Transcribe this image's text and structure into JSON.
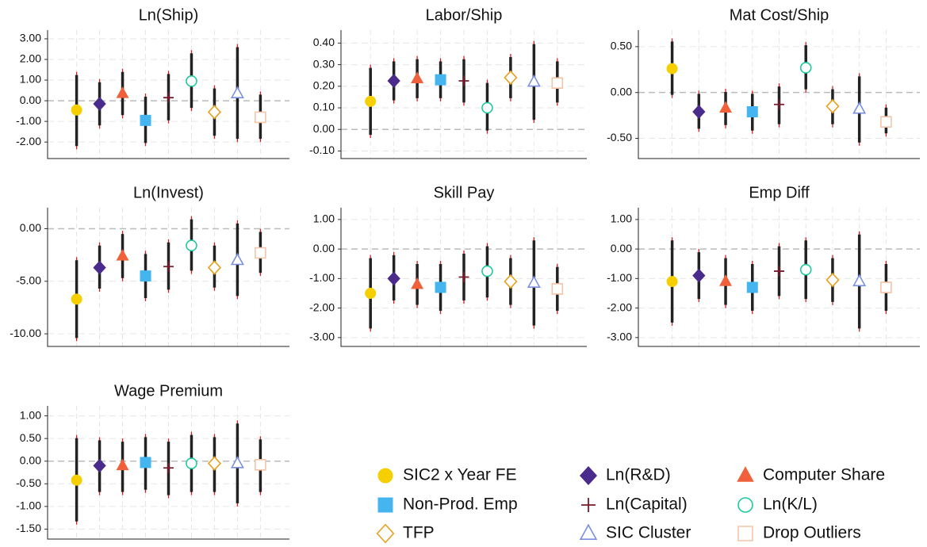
{
  "chart_data": [
    {
      "type": "coefplot",
      "title": "Ln(Ship)",
      "ylim": [
        -2.8,
        3.42
      ],
      "yticks": [
        {
          "value": -2,
          "label": "-2.00"
        },
        {
          "value": -1,
          "label": "-1.00"
        },
        {
          "value": 0,
          "label": "0.00"
        },
        {
          "value": 1,
          "label": "1.00"
        },
        {
          "value": 2,
          "label": "2.00"
        },
        {
          "value": 3,
          "label": "3.00"
        }
      ],
      "values": [
        -0.45,
        -0.15,
        0.35,
        -0.95,
        0.15,
        0.95,
        -0.55,
        0.35,
        -0.8
      ],
      "ci_low": [
        -2.35,
        -1.35,
        -0.85,
        -2.2,
        -1.1,
        -0.5,
        -1.85,
        -2.0,
        -2.0
      ],
      "ci_high": [
        1.4,
        1.05,
        1.55,
        0.35,
        1.45,
        2.45,
        0.75,
        2.75,
        0.45
      ]
    },
    {
      "type": "coefplot",
      "title": "Labor/Ship",
      "ylim": [
        -0.135,
        0.46
      ],
      "yticks": [
        {
          "value": -0.1,
          "label": "-0.10"
        },
        {
          "value": 0,
          "label": "0.00"
        },
        {
          "value": 0.1,
          "label": "0.10"
        },
        {
          "value": 0.2,
          "label": "0.20"
        },
        {
          "value": 0.3,
          "label": "0.30"
        },
        {
          "value": 0.4,
          "label": "0.40"
        }
      ],
      "values": [
        0.13,
        0.225,
        0.235,
        0.23,
        0.225,
        0.1,
        0.24,
        0.22,
        0.215
      ],
      "ci_low": [
        -0.04,
        0.12,
        0.13,
        0.13,
        0.11,
        -0.02,
        0.13,
        0.03,
        0.11
      ],
      "ci_high": [
        0.3,
        0.33,
        0.34,
        0.33,
        0.34,
        0.23,
        0.35,
        0.41,
        0.33
      ]
    },
    {
      "type": "coefplot",
      "title": "Mat Cost/Ship",
      "ylim": [
        -0.72,
        0.68
      ],
      "yticks": [
        {
          "value": -0.5,
          "label": "-0.50"
        },
        {
          "value": 0,
          "label": "0.00"
        },
        {
          "value": 0.5,
          "label": "0.50"
        }
      ],
      "values": [
        0.26,
        -0.21,
        -0.17,
        -0.21,
        -0.13,
        0.27,
        -0.15,
        -0.18,
        -0.32
      ],
      "ci_low": [
        -0.06,
        -0.43,
        -0.39,
        -0.45,
        -0.38,
        0.0,
        -0.38,
        -0.58,
        -0.48
      ],
      "ci_high": [
        0.59,
        0.02,
        0.04,
        0.02,
        0.1,
        0.55,
        0.07,
        0.21,
        -0.13
      ]
    },
    {
      "type": "coefplot",
      "title": "Ln(Invest)",
      "ylim": [
        -11.2,
        2.0
      ],
      "yticks": [
        {
          "value": -10,
          "label": "-10.00"
        },
        {
          "value": -5,
          "label": "-5.00"
        },
        {
          "value": 0,
          "label": "0.00"
        }
      ],
      "values": [
        -6.7,
        -3.7,
        -2.6,
        -4.5,
        -3.6,
        -1.6,
        -3.7,
        -3.0,
        -2.3
      ],
      "ci_low": [
        -10.7,
        -6.0,
        -5.0,
        -6.9,
        -6.1,
        -4.3,
        -5.9,
        -6.7,
        -4.5
      ],
      "ci_high": [
        -2.7,
        -1.3,
        -0.2,
        -2.1,
        -1.0,
        1.2,
        -1.3,
        0.8,
        0.0
      ]
    },
    {
      "type": "coefplot",
      "title": "Skill Pay",
      "ylim": [
        -3.3,
        1.4
      ],
      "yticks": [
        {
          "value": -3,
          "label": "-3.00"
        },
        {
          "value": -2,
          "label": "-2.00"
        },
        {
          "value": -1,
          "label": "-1.00"
        },
        {
          "value": 0,
          "label": "0.00"
        },
        {
          "value": 1,
          "label": "1.00"
        }
      ],
      "values": [
        -1.5,
        -1.0,
        -1.2,
        -1.3,
        -0.95,
        -0.75,
        -1.1,
        -1.15,
        -1.35
      ],
      "ci_low": [
        -2.8,
        -1.85,
        -2.0,
        -2.2,
        -1.85,
        -1.75,
        -2.0,
        -2.7,
        -2.2
      ],
      "ci_high": [
        -0.2,
        -0.1,
        -0.4,
        -0.4,
        -0.05,
        0.2,
        -0.2,
        0.4,
        -0.5
      ]
    },
    {
      "type": "coefplot",
      "title": "Emp Diff",
      "ylim": [
        -3.3,
        1.4
      ],
      "yticks": [
        {
          "value": -3,
          "label": "-3.00"
        },
        {
          "value": -2,
          "label": "-2.00"
        },
        {
          "value": -1,
          "label": "-1.00"
        },
        {
          "value": 0,
          "label": "0.00"
        },
        {
          "value": 1,
          "label": "1.00"
        }
      ],
      "values": [
        -1.1,
        -0.9,
        -1.1,
        -1.3,
        -0.75,
        -0.7,
        -1.05,
        -1.1,
        -1.3
      ],
      "ci_low": [
        -2.6,
        -1.8,
        -2.0,
        -2.2,
        -1.7,
        -1.8,
        -1.9,
        -2.8,
        -2.2
      ],
      "ci_high": [
        0.4,
        0.0,
        -0.2,
        -0.4,
        0.2,
        0.4,
        -0.2,
        0.6,
        -0.4
      ]
    },
    {
      "type": "coefplot",
      "title": "Wage Premium",
      "ylim": [
        -1.72,
        1.22
      ],
      "yticks": [
        {
          "value": -1.5,
          "label": "-1.50"
        },
        {
          "value": -1,
          "label": "-1.00"
        },
        {
          "value": -0.5,
          "label": "-0.50"
        },
        {
          "value": 0,
          "label": "0.00"
        },
        {
          "value": 0.5,
          "label": "0.50"
        },
        {
          "value": 1,
          "label": "1.00"
        }
      ],
      "values": [
        -0.42,
        -0.1,
        -0.1,
        -0.03,
        -0.15,
        -0.05,
        -0.05,
        -0.05,
        -0.08
      ],
      "ci_low": [
        -1.4,
        -0.75,
        -0.75,
        -0.7,
        -0.82,
        -0.75,
        -0.75,
        -1.0,
        -0.75
      ],
      "ci_high": [
        0.58,
        0.53,
        0.5,
        0.6,
        0.5,
        0.65,
        0.6,
        0.9,
        0.55
      ]
    }
  ],
  "legend": {
    "series": [
      {
        "name": "SIC2 x Year FE",
        "color": "#f5cf00",
        "marker": "circle",
        "filled": true
      },
      {
        "name": "Ln(R&D)",
        "color": "#4a2b8c",
        "marker": "diamond",
        "filled": true
      },
      {
        "name": "Computer Share",
        "color": "#f0603a",
        "marker": "triangle",
        "filled": true
      },
      {
        "name": "Non-Prod. Emp",
        "color": "#45b5f0",
        "marker": "square",
        "filled": true
      },
      {
        "name": "Ln(Capital)",
        "color": "#7a1a2a",
        "marker": "plus",
        "filled": false
      },
      {
        "name": "Ln(K/L)",
        "color": "#1fc99f",
        "marker": "circle",
        "filled": false
      },
      {
        "name": "TFP",
        "color": "#e8a020",
        "marker": "diamond",
        "filled": false
      },
      {
        "name": "SIC Cluster",
        "color": "#7a8fe0",
        "marker": "triangle",
        "filled": false
      },
      {
        "name": "Drop Outliers",
        "color": "#f5c4a6",
        "marker": "square",
        "filled": false
      }
    ]
  }
}
